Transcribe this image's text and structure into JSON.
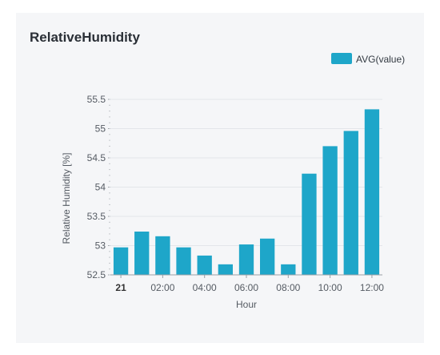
{
  "panel": {
    "title": "RelativeHumidity"
  },
  "colors": {
    "bar": "#1ea6c9",
    "grid": "#e3e6ea",
    "axis": "#9aa0a6"
  },
  "chart_data": {
    "type": "bar",
    "title": "RelativeHumidity",
    "xlabel": "Hour",
    "ylabel": "Relative Humidity [%]",
    "ylim": [
      52.5,
      55.5
    ],
    "yticks": [
      "52.5",
      "53",
      "53.5",
      "54",
      "54.5",
      "55",
      "55.5"
    ],
    "x_tick_labels": [
      "21",
      "02:00",
      "04:00",
      "06:00",
      "08:00",
      "10:00",
      "12:00"
    ],
    "legend": {
      "position": "top-right"
    },
    "series": [
      {
        "name": "AVG(value)",
        "values": [
          52.97,
          53.24,
          53.16,
          52.97,
          52.83,
          52.68,
          53.02,
          53.12,
          52.68,
          54.23,
          54.7,
          54.96,
          55.33
        ]
      }
    ]
  }
}
